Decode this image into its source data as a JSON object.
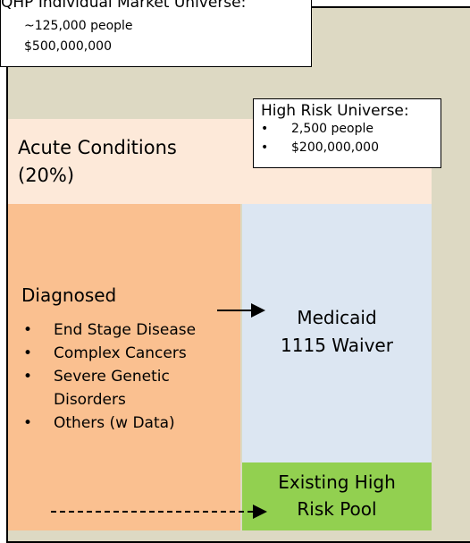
{
  "universe": {
    "title": "QHP Individual Market Universe:",
    "lines": [
      "~125,000 people",
      "$500,000,000"
    ]
  },
  "high_risk": {
    "title": "High Risk Universe:",
    "bullets": [
      "2,500 people",
      "$200,000,000"
    ]
  },
  "acute": {
    "label": "Acute Conditions",
    "share": "(20%)"
  },
  "diagnosed": {
    "title": "Diagnosed",
    "bullets": [
      "End Stage Disease",
      "Complex Cancers",
      "Severe Genetic Disorders",
      "Others (w Data)"
    ]
  },
  "medicaid": {
    "lines": [
      "Medicaid",
      "1115 Waiver"
    ]
  },
  "pool": {
    "lines": [
      "Existing High",
      "Risk Pool"
    ]
  }
}
